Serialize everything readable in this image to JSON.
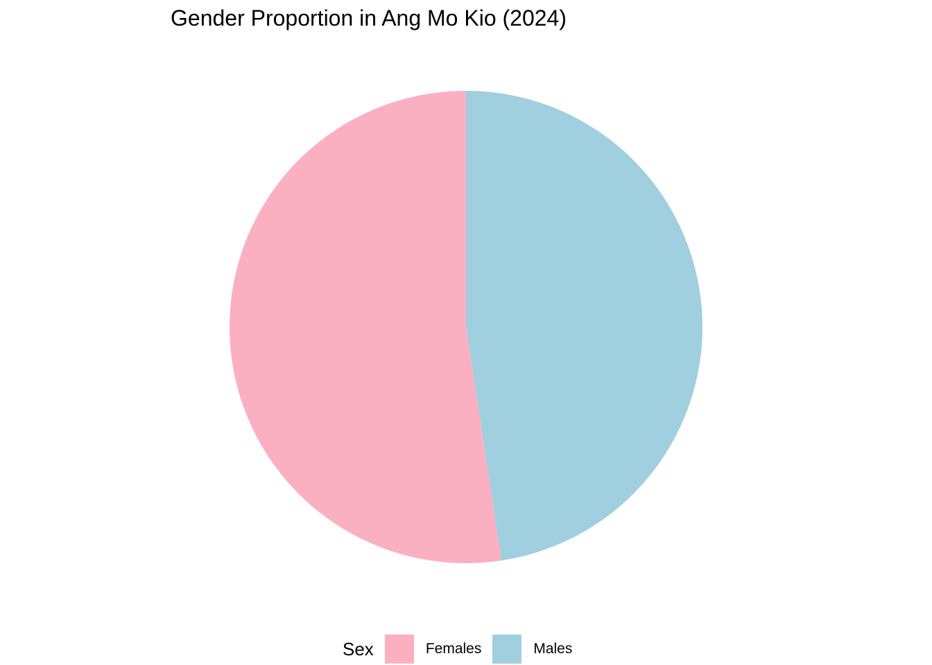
{
  "chart_data": {
    "type": "pie",
    "title": "Gender Proportion in Ang Mo Kio (2024)",
    "legend_title": "Sex",
    "legend_position": "bottom",
    "start_angle_deg": 0,
    "direction": "counterclockwise",
    "categories": [
      "Females",
      "Males"
    ],
    "values": [
      0.524,
      0.476
    ],
    "colors": [
      "#FBB0C1",
      "#A0CFE0"
    ]
  }
}
